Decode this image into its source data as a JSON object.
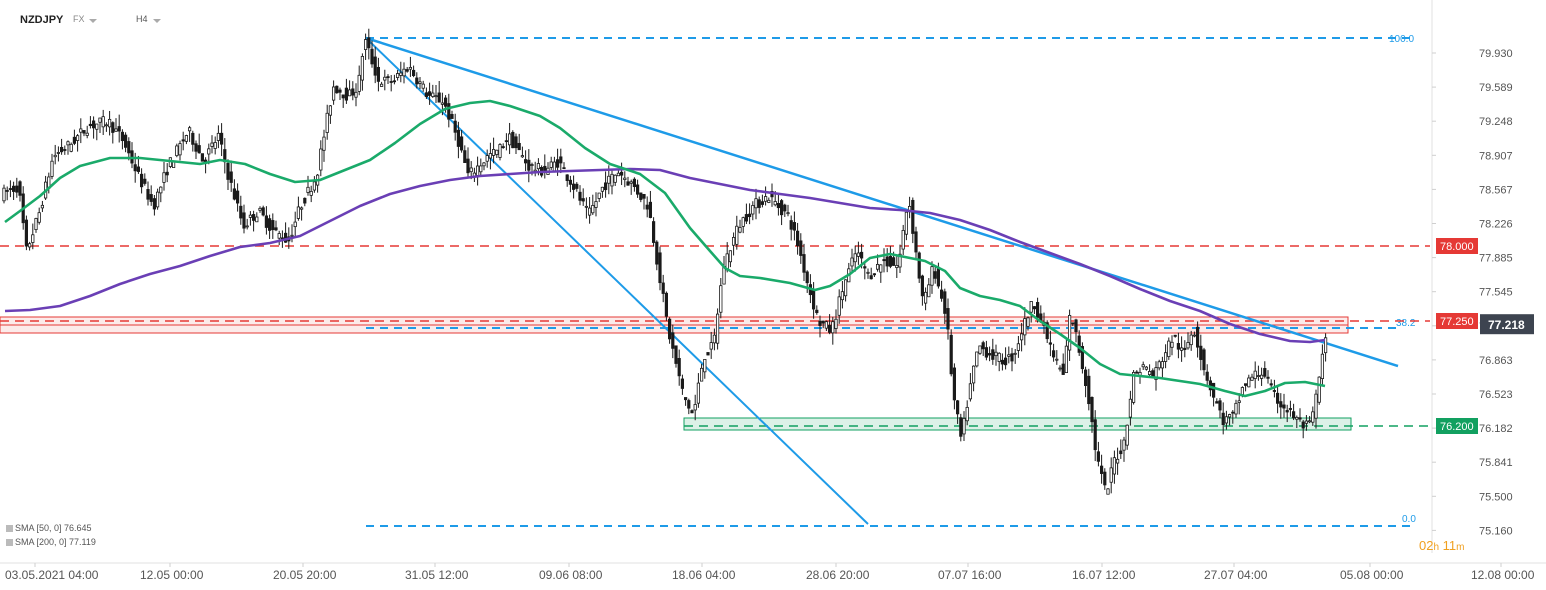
{
  "header": {
    "symbol": "NZDJPY",
    "market": "FX",
    "timeframe": "H4"
  },
  "legend": [
    {
      "label": "SMA [50, 0] 76.645"
    },
    {
      "label": "SMA [200, 0] 77.119"
    }
  ],
  "countdown": {
    "h_value": "02",
    "h_unit": "h",
    "m_value": "11",
    "m_unit": "m"
  },
  "colors": {
    "bull_body": "#ffffff",
    "bear_body": "#1a1a1a",
    "wick": "#1a1a1a",
    "sma50": "#1aaa6a",
    "sma200": "#6a3fb5",
    "trendline": "#1e9be8",
    "resistance": "#e53935",
    "support": "#12a060",
    "price_tag": "#3d4450"
  },
  "chart_data": {
    "type": "candlestick",
    "symbol": "NZDJPY",
    "timeframe": "H4",
    "ylim": [
      75.16,
      80.3
    ],
    "y_ticks": [
      "79.930",
      "79.589",
      "79.248",
      "78.907",
      "78.567",
      "78.226",
      "77.885",
      "77.545",
      "77.204",
      "76.863",
      "76.523",
      "76.182",
      "75.841",
      "75.500",
      "75.160"
    ],
    "x_ticks": [
      "03.05.2021 04:00",
      "12.05 00:00",
      "20.05 20:00",
      "31.05 12:00",
      "09.06 08:00",
      "18.06 04:00",
      "28.06 20:00",
      "07.07 16:00",
      "16.07 12:00",
      "27.07 04:00",
      "05.08 00:00",
      "12.08 00:00"
    ],
    "price_keypoints": [
      [
        0,
        78.5
      ],
      [
        10,
        78.55
      ],
      [
        20,
        78.6
      ],
      [
        28,
        77.95
      ],
      [
        40,
        78.3
      ],
      [
        55,
        78.9
      ],
      [
        70,
        79.0
      ],
      [
        90,
        79.2
      ],
      [
        110,
        79.25
      ],
      [
        125,
        79.05
      ],
      [
        140,
        78.7
      ],
      [
        155,
        78.4
      ],
      [
        170,
        78.8
      ],
      [
        190,
        79.15
      ],
      [
        205,
        78.85
      ],
      [
        220,
        79.1
      ],
      [
        230,
        78.7
      ],
      [
        245,
        78.2
      ],
      [
        260,
        78.35
      ],
      [
        275,
        78.15
      ],
      [
        290,
        78.05
      ],
      [
        302,
        78.4
      ],
      [
        318,
        78.7
      ],
      [
        335,
        79.6
      ],
      [
        350,
        79.5
      ],
      [
        360,
        79.6
      ],
      [
        366,
        80.08
      ],
      [
        380,
        79.65
      ],
      [
        395,
        79.65
      ],
      [
        410,
        79.8
      ],
      [
        430,
        79.5
      ],
      [
        445,
        79.45
      ],
      [
        460,
        79.05
      ],
      [
        470,
        78.7
      ],
      [
        490,
        78.9
      ],
      [
        500,
        78.95
      ],
      [
        510,
        79.1
      ],
      [
        530,
        78.8
      ],
      [
        545,
        78.75
      ],
      [
        560,
        78.85
      ],
      [
        575,
        78.6
      ],
      [
        590,
        78.3
      ],
      [
        605,
        78.6
      ],
      [
        620,
        78.75
      ],
      [
        635,
        78.6
      ],
      [
        650,
        78.4
      ],
      [
        658,
        77.9
      ],
      [
        670,
        77.15
      ],
      [
        685,
        76.5
      ],
      [
        695,
        76.3
      ],
      [
        705,
        76.9
      ],
      [
        715,
        77.0
      ],
      [
        725,
        77.8
      ],
      [
        740,
        78.2
      ],
      [
        755,
        78.4
      ],
      [
        770,
        78.5
      ],
      [
        790,
        78.3
      ],
      [
        800,
        78.0
      ],
      [
        810,
        77.6
      ],
      [
        820,
        77.25
      ],
      [
        833,
        77.15
      ],
      [
        845,
        77.6
      ],
      [
        858,
        77.95
      ],
      [
        870,
        77.7
      ],
      [
        885,
        77.85
      ],
      [
        900,
        77.8
      ],
      [
        910,
        78.5
      ],
      [
        918,
        77.9
      ],
      [
        925,
        77.4
      ],
      [
        935,
        77.8
      ],
      [
        948,
        77.3
      ],
      [
        955,
        76.5
      ],
      [
        963,
        76.05
      ],
      [
        970,
        76.5
      ],
      [
        980,
        77.0
      ],
      [
        995,
        76.9
      ],
      [
        1005,
        76.85
      ],
      [
        1015,
        76.9
      ],
      [
        1025,
        77.2
      ],
      [
        1035,
        77.45
      ],
      [
        1045,
        77.2
      ],
      [
        1055,
        76.9
      ],
      [
        1065,
        76.7
      ],
      [
        1072,
        77.35
      ],
      [
        1080,
        77.0
      ],
      [
        1090,
        76.5
      ],
      [
        1098,
        75.9
      ],
      [
        1108,
        75.5
      ],
      [
        1115,
        75.85
      ],
      [
        1125,
        76.0
      ],
      [
        1135,
        76.7
      ],
      [
        1145,
        76.8
      ],
      [
        1155,
        76.7
      ],
      [
        1165,
        76.9
      ],
      [
        1175,
        77.1
      ],
      [
        1185,
        76.9
      ],
      [
        1195,
        77.2
      ],
      [
        1205,
        76.8
      ],
      [
        1215,
        76.5
      ],
      [
        1225,
        76.25
      ],
      [
        1235,
        76.3
      ],
      [
        1245,
        76.6
      ],
      [
        1255,
        76.7
      ],
      [
        1265,
        76.75
      ],
      [
        1275,
        76.5
      ],
      [
        1285,
        76.4
      ],
      [
        1295,
        76.3
      ],
      [
        1305,
        76.2
      ],
      [
        1312,
        76.2
      ],
      [
        1318,
        76.5
      ],
      [
        1325,
        76.95
      ],
      [
        1330,
        77.2
      ]
    ],
    "sma50_keypoints": [
      [
        5,
        78.24
      ],
      [
        20,
        78.35
      ],
      [
        40,
        78.5
      ],
      [
        60,
        78.68
      ],
      [
        80,
        78.8
      ],
      [
        110,
        78.88
      ],
      [
        140,
        78.88
      ],
      [
        170,
        78.85
      ],
      [
        200,
        78.82
      ],
      [
        220,
        78.86
      ],
      [
        245,
        78.82
      ],
      [
        270,
        78.72
      ],
      [
        295,
        78.64
      ],
      [
        320,
        78.66
      ],
      [
        345,
        78.76
      ],
      [
        370,
        78.86
      ],
      [
        395,
        79.03
      ],
      [
        420,
        79.22
      ],
      [
        445,
        79.37
      ],
      [
        470,
        79.43
      ],
      [
        490,
        79.45
      ],
      [
        510,
        79.4
      ],
      [
        540,
        79.3
      ],
      [
        560,
        79.18
      ],
      [
        585,
        78.98
      ],
      [
        610,
        78.82
      ],
      [
        640,
        78.72
      ],
      [
        665,
        78.53
      ],
      [
        690,
        78.18
      ],
      [
        710,
        77.95
      ],
      [
        725,
        77.78
      ],
      [
        740,
        77.7
      ],
      [
        760,
        77.68
      ],
      [
        790,
        77.63
      ],
      [
        815,
        77.56
      ],
      [
        830,
        77.6
      ],
      [
        850,
        77.72
      ],
      [
        870,
        77.88
      ],
      [
        890,
        77.92
      ],
      [
        910,
        77.88
      ],
      [
        925,
        77.85
      ],
      [
        945,
        77.75
      ],
      [
        960,
        77.58
      ],
      [
        980,
        77.5
      ],
      [
        1000,
        77.46
      ],
      [
        1020,
        77.4
      ],
      [
        1040,
        77.25
      ],
      [
        1060,
        77.12
      ],
      [
        1080,
        76.98
      ],
      [
        1100,
        76.82
      ],
      [
        1120,
        76.72
      ],
      [
        1140,
        76.7
      ],
      [
        1160,
        76.68
      ],
      [
        1180,
        76.65
      ],
      [
        1200,
        76.62
      ],
      [
        1225,
        76.55
      ],
      [
        1245,
        76.5
      ],
      [
        1265,
        76.55
      ],
      [
        1285,
        76.63
      ],
      [
        1305,
        76.64
      ],
      [
        1325,
        76.6
      ]
    ],
    "sma200_keypoints": [
      [
        5,
        77.35
      ],
      [
        30,
        77.36
      ],
      [
        60,
        77.4
      ],
      [
        90,
        77.5
      ],
      [
        120,
        77.62
      ],
      [
        150,
        77.72
      ],
      [
        180,
        77.8
      ],
      [
        210,
        77.9
      ],
      [
        240,
        77.99
      ],
      [
        270,
        78.03
      ],
      [
        300,
        78.1
      ],
      [
        330,
        78.25
      ],
      [
        360,
        78.4
      ],
      [
        390,
        78.52
      ],
      [
        420,
        78.6
      ],
      [
        450,
        78.66
      ],
      [
        480,
        78.7
      ],
      [
        510,
        78.72
      ],
      [
        540,
        78.74
      ],
      [
        570,
        78.75
      ],
      [
        600,
        78.76
      ],
      [
        630,
        78.77
      ],
      [
        660,
        78.76
      ],
      [
        690,
        78.68
      ],
      [
        720,
        78.62
      ],
      [
        750,
        78.56
      ],
      [
        780,
        78.52
      ],
      [
        810,
        78.48
      ],
      [
        840,
        78.43
      ],
      [
        870,
        78.38
      ],
      [
        900,
        78.36
      ],
      [
        930,
        78.33
      ],
      [
        960,
        78.26
      ],
      [
        990,
        78.16
      ],
      [
        1020,
        78.04
      ],
      [
        1050,
        77.93
      ],
      [
        1080,
        77.82
      ],
      [
        1110,
        77.7
      ],
      [
        1140,
        77.57
      ],
      [
        1170,
        77.45
      ],
      [
        1200,
        77.35
      ],
      [
        1230,
        77.22
      ],
      [
        1260,
        77.12
      ],
      [
        1290,
        77.05
      ],
      [
        1310,
        77.04
      ],
      [
        1325,
        77.06
      ]
    ],
    "overlays": {
      "fibonacci": {
        "level_100": 80.08,
        "level_0": 75.2,
        "label_100": "100.0",
        "label_382": "38.2",
        "label_0": "0.0"
      },
      "resistance_levels": [
        {
          "value": 78.0,
          "label": "78.000"
        },
        {
          "value": 77.25,
          "label": "77.250"
        }
      ],
      "support_levels": [
        {
          "value": 76.2,
          "label": "76.200"
        }
      ],
      "resistance_zone": [
        77.13,
        77.29
      ],
      "support_zone": [
        76.16,
        76.28
      ],
      "level_382_value": 77.18,
      "current_price": {
        "value": 77.218,
        "label": "77.218"
      }
    }
  }
}
